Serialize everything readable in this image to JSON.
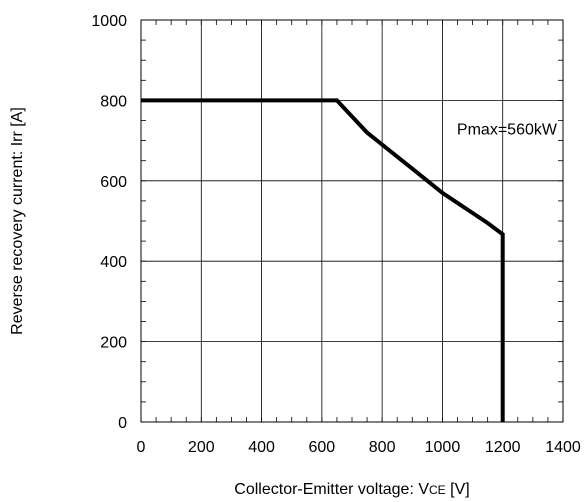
{
  "chart_data": {
    "type": "line",
    "xlabel": "Collector-Emitter voltage: VCE [V]",
    "xlabel_prefix": "Collector-Emitter voltage: V",
    "xlabel_sub": "CE",
    "xlabel_suffix": " [V]",
    "ylabel": "Reverse recovery current: Irr [A]",
    "xlim": [
      0,
      1400
    ],
    "ylim": [
      0,
      1000
    ],
    "x_ticks": [
      0,
      200,
      400,
      600,
      800,
      1000,
      1200,
      1400
    ],
    "y_ticks": [
      0,
      200,
      400,
      600,
      800,
      1000
    ],
    "x_tick_labels": [
      "0",
      "200",
      "400",
      "600",
      "800",
      "1000",
      "1200",
      "1400"
    ],
    "y_tick_labels": [
      "0",
      "200",
      "400",
      "600",
      "800",
      "1000"
    ],
    "grid": true,
    "annotation": "Pmax=560kW",
    "series": [
      {
        "x": [
          0,
          650,
          700,
          750,
          800,
          850,
          900,
          950,
          1000,
          1050,
          1100,
          1150,
          1200,
          1200
        ],
        "y": [
          800,
          800,
          760,
          720,
          690,
          660,
          630,
          600,
          570,
          545,
          520,
          495,
          467,
          0
        ]
      }
    ],
    "colors": {
      "line": "#000000",
      "grid": "#000000",
      "axis": "#000000"
    }
  }
}
